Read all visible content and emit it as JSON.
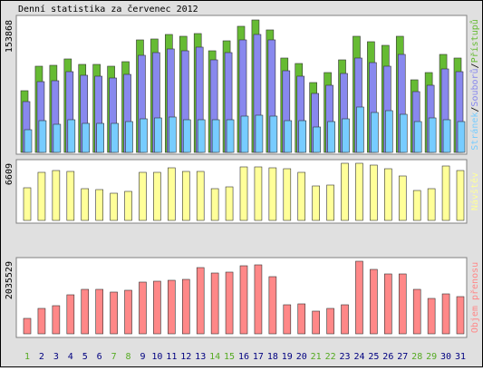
{
  "chart_data": [
    {
      "type": "bar",
      "title": "Denní statistika za červenec 2012",
      "ylim": [
        0,
        153868
      ],
      "yticks": [
        153868
      ],
      "legend_separator": "/",
      "series": [
        {
          "name": "Přístupů",
          "color": "#66bb33",
          "values": [
            71672,
            100130,
            101184,
            108562,
            102238,
            102238,
            100130,
            105400,
            130696,
            131750,
            137020,
            134912,
            138074,
            118048,
            129642,
            146506,
            153868,
            142290,
            109616,
            103292,
            81158,
            92752,
            107508,
            134912,
            128588,
            124372,
            134912,
            84320,
            92752,
            113832,
            109616
          ]
        },
        {
          "name": "Souborů",
          "color": "#8888ee",
          "values": [
            59024,
            82212,
            83266,
            93806,
            89590,
            88536,
            86428,
            90644,
            112778,
            115940,
            120156,
            118048,
            122264,
            107508,
            115940,
            130696,
            137020,
            130696,
            94860,
            88536,
            68510,
            77996,
            91698,
            109616,
            104346,
            100130,
            113832,
            70618,
            77996,
            96968,
            93806
          ]
        },
        {
          "name": "Stránek",
          "color": "#77ccff",
          "values": [
            26350,
            36890,
            32674,
            37944,
            33728,
            33728,
            33728,
            35836,
            38998,
            40052,
            41106,
            37944,
            37944,
            37944,
            37944,
            42160,
            43214,
            42160,
            36890,
            36890,
            29512,
            35836,
            38998,
            52700,
            46376,
            48484,
            44268,
            35836,
            40052,
            37944,
            35836
          ]
        }
      ]
    },
    {
      "type": "bar",
      "ylim": [
        0,
        6609
      ],
      "yticks": [
        6609
      ],
      "series": [
        {
          "name": "Návštěv",
          "color": "#ffff99",
          "values": [
            3776,
            5560,
            5770,
            5665,
            3672,
            3567,
            3147,
            3357,
            5560,
            5560,
            6084,
            5665,
            5665,
            3672,
            3881,
            6189,
            6189,
            6084,
            5979,
            5560,
            3986,
            4091,
            6609,
            6609,
            6399,
            5979,
            5140,
            3462,
            3672,
            6294,
            5770
          ]
        }
      ]
    },
    {
      "type": "bar",
      "ylim": [
        0,
        2035529
      ],
      "yticks": [
        2035529
      ],
      "categories": [
        "1",
        "2",
        "3",
        "4",
        "5",
        "6",
        "7",
        "8",
        "9",
        "10",
        "11",
        "12",
        "13",
        "14",
        "15",
        "16",
        "17",
        "18",
        "19",
        "20",
        "21",
        "22",
        "23",
        "24",
        "25",
        "26",
        "27",
        "28",
        "29",
        "30",
        "31"
      ],
      "category_label_colors": [
        "#55aa22",
        "#000080",
        "#000080",
        "#000080",
        "#000080",
        "#000080",
        "#55aa22",
        "#55aa22",
        "#000080",
        "#000080",
        "#000080",
        "#000080",
        "#000080",
        "#55aa22",
        "#55aa22",
        "#000080",
        "#000080",
        "#000080",
        "#000080",
        "#000080",
        "#55aa22",
        "#55aa22",
        "#000080",
        "#000080",
        "#000080",
        "#000080",
        "#000080",
        "#55aa22",
        "#55aa22",
        "#000080",
        "#000080"
      ],
      "series": [
        {
          "name": "Objem přenosu",
          "color": "#ff8888",
          "values": [
            432548,
            712432,
            788764,
            1094092,
            1246756,
            1246756,
            1170424,
            1221312,
            1450308,
            1475752,
            1501196,
            1526640,
            1857412,
            1704748,
            1730192,
            1908300,
            1933744,
            1602972,
            814208,
            839652,
            636100,
            712432,
            814208,
            2035529,
            1806524,
            1679304,
            1679304,
            1246756,
            992316,
            1119536,
            1043204
          ]
        }
      ]
    }
  ]
}
